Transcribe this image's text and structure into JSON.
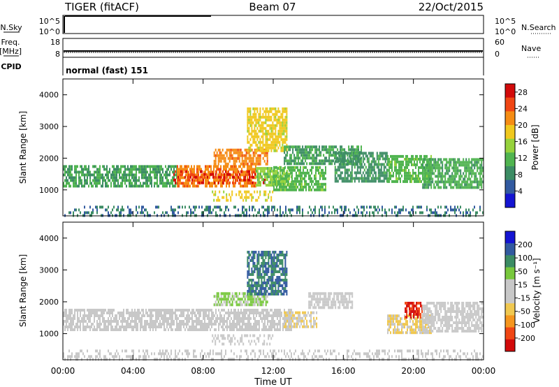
{
  "header": {
    "station": "TIGER (fitACF)",
    "beam": "Beam 07",
    "date": "22/Oct/2015"
  },
  "summary_panels": {
    "nsky_label": "N.Sky",
    "nsky_ticks": [
      "10^5",
      "10^0"
    ],
    "nsearch_label": "N.Search",
    "nsearch_ticks": [
      "10^5",
      "10^0"
    ],
    "freq_label_lines": [
      "Freq.",
      "[MHz]"
    ],
    "freq_ticks": [
      "18",
      "8"
    ],
    "nave_label": "Nave",
    "nave_ticks": [
      "60",
      "0"
    ],
    "cpid_label": "CPID",
    "cpid_text": "normal (fast) 151"
  },
  "colors": {
    "power": [
      "#1414d2",
      "#325aa0",
      "#3c8c64",
      "#50b450",
      "#96d23c",
      "#f0c81e",
      "#f58c14",
      "#f04614",
      "#d20a0a"
    ],
    "velocity": [
      "#d20a0a",
      "#f04614",
      "#f5961e",
      "#f0c850",
      "#c8c8c8",
      "#c8c8c8",
      "#78c83c",
      "#3c8c64",
      "#325aa0",
      "#1414d2"
    ]
  },
  "chart_data": [
    {
      "type": "heatmap",
      "title": "Power",
      "xlabel": "Time UT",
      "ylabel": "Slant Range [km]",
      "x_ticks": [
        "00:00",
        "04:00",
        "08:00",
        "12:00",
        "16:00",
        "20:00",
        "00:00"
      ],
      "xlim_hours": [
        0,
        24
      ],
      "y_ticks": [
        1000,
        2000,
        3000,
        4000
      ],
      "ylim_km": [
        180,
        4500
      ],
      "colorbar": {
        "label": "Power [dB]",
        "ticks": [
          4,
          8,
          12,
          16,
          20,
          24,
          28
        ],
        "range": [
          0,
          30
        ]
      },
      "regions": [
        {
          "t": [
            0.0,
            6.5
          ],
          "r": [
            1130,
            1780
          ],
          "level": 10
        },
        {
          "t": [
            6.5,
            11.0
          ],
          "r": [
            1130,
            1780
          ],
          "level": 22
        },
        {
          "t": [
            6.3,
            11.5
          ],
          "r": [
            1250,
            1620
          ],
          "level": 27
        },
        {
          "t": [
            11.0,
            13.0
          ],
          "r": [
            1150,
            1720
          ],
          "level": 14
        },
        {
          "t": [
            8.5,
            12.0
          ],
          "r": [
            650,
            980
          ],
          "level": 18
        },
        {
          "t": [
            8.6,
            11.7
          ],
          "r": [
            1800,
            2300
          ],
          "level": 22
        },
        {
          "t": [
            10.5,
            12.8
          ],
          "r": [
            2250,
            3600
          ],
          "level": 18
        },
        {
          "t": [
            12.0,
            15.0
          ],
          "r": [
            1000,
            1750
          ],
          "level": 12
        },
        {
          "t": [
            12.6,
            17.0
          ],
          "r": [
            1800,
            2400
          ],
          "level": 10
        },
        {
          "t": [
            15.5,
            18.5
          ],
          "r": [
            1300,
            2200
          ],
          "level": 9
        },
        {
          "t": [
            18.5,
            21.0
          ],
          "r": [
            1300,
            2100
          ],
          "level": 12
        },
        {
          "t": [
            20.5,
            24.0
          ],
          "r": [
            1100,
            2000
          ],
          "level": 11
        },
        {
          "t": [
            0.0,
            24.0
          ],
          "r": [
            200,
            500
          ],
          "level": 7
        }
      ]
    },
    {
      "type": "heatmap",
      "title": "Velocity",
      "xlabel": "Time UT",
      "ylabel": "Slant Range [km]",
      "x_ticks": [
        "00:00",
        "04:00",
        "08:00",
        "12:00",
        "16:00",
        "20:00",
        "00:00"
      ],
      "xlim_hours": [
        0,
        24
      ],
      "y_ticks": [
        1000,
        2000,
        3000,
        4000
      ],
      "ylim_km": [
        180,
        4500
      ],
      "colorbar": {
        "label": "Velocity [m s⁻¹]",
        "ticks": [
          200,
          100,
          50,
          15,
          -15,
          -50,
          -100,
          -200
        ],
        "range": [
          -250,
          250
        ]
      },
      "regions": [
        {
          "t": [
            0.0,
            13.0
          ],
          "r": [
            1130,
            1780
          ],
          "level": 0
        },
        {
          "t": [
            8.5,
            12.0
          ],
          "r": [
            650,
            980
          ],
          "level": 0
        },
        {
          "t": [
            8.6,
            11.7
          ],
          "r": [
            1900,
            2300
          ],
          "level": 60
        },
        {
          "t": [
            10.5,
            12.8
          ],
          "r": [
            2250,
            3600
          ],
          "level": 150
        },
        {
          "t": [
            12.6,
            14.5
          ],
          "r": [
            1200,
            1700
          ],
          "level": -40
        },
        {
          "t": [
            14.0,
            16.5
          ],
          "r": [
            1800,
            2300
          ],
          "level": 0
        },
        {
          "t": [
            18.5,
            21.0
          ],
          "r": [
            1000,
            1600
          ],
          "level": -60
        },
        {
          "t": [
            19.5,
            20.5
          ],
          "r": [
            1500,
            2000
          ],
          "level": -200
        },
        {
          "t": [
            20.5,
            24.0
          ],
          "r": [
            1100,
            2000
          ],
          "level": 0
        },
        {
          "t": [
            0.0,
            24.0
          ],
          "r": [
            200,
            500
          ],
          "level": 20
        }
      ]
    }
  ]
}
